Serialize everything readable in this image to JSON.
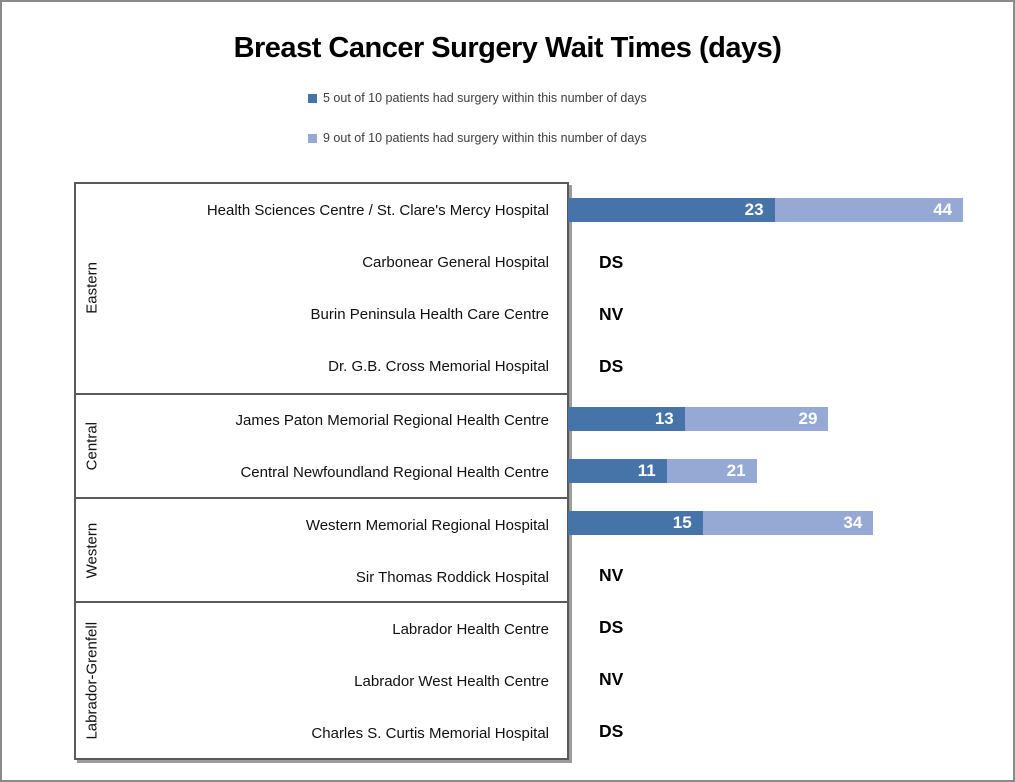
{
  "legend": [
    {
      "label": "5 out of 10 patients had surgery within this number of days",
      "color": "#4674A9"
    },
    {
      "label": "9 out of 10 patients had surgery within this number of days",
      "color": "#95A9D4"
    }
  ],
  "colors": {
    "median_bar": "#4674A9",
    "ninetieth_bar": "#95A9D4",
    "box_border": "#5A5A5A",
    "frame_border": "#8A8A8A"
  },
  "chart_data": {
    "type": "bar",
    "orientation": "horizontal",
    "title": "Breast Cancer Surgery Wait Times (days)",
    "unit": "days",
    "xlim": [
      0,
      50
    ],
    "grid": false,
    "legend_position": "top",
    "series_names": [
      "5 out of 10 patients had surgery within this number of days",
      "9 out of 10 patients had surgery within this number of days"
    ],
    "groups": [
      {
        "region": "Eastern",
        "hospitals": [
          {
            "name": "Health Sciences Centre / St. Clare's Mercy Hospital",
            "p50": 23,
            "p90": 44
          },
          {
            "name": "Carbonear General Hospital",
            "status": "DS"
          },
          {
            "name": "Burin Peninsula Health Care Centre",
            "status": "NV"
          },
          {
            "name": "Dr. G.B. Cross Memorial Hospital",
            "status": "DS"
          }
        ]
      },
      {
        "region": "Central",
        "hospitals": [
          {
            "name": "James Paton Memorial Regional Health Centre",
            "p50": 13,
            "p90": 29
          },
          {
            "name": "Central Newfoundland Regional Health Centre",
            "p50": 11,
            "p90": 21
          }
        ]
      },
      {
        "region": "Western",
        "hospitals": [
          {
            "name": "Western Memorial Regional Hospital",
            "p50": 15,
            "p90": 34
          },
          {
            "name": "Sir Thomas Roddick Hospital",
            "status": "NV"
          }
        ]
      },
      {
        "region": "Labrador-Grenfell",
        "hospitals": [
          {
            "name": "Labrador Health Centre",
            "status": "DS"
          },
          {
            "name": "Labrador West Health Centre",
            "status": "NV"
          },
          {
            "name": "Charles S. Curtis Memorial Hospital",
            "status": "DS"
          }
        ]
      }
    ]
  }
}
